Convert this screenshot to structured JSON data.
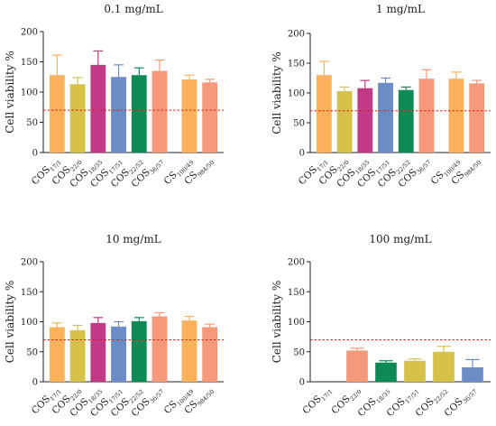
{
  "colors": {
    "orange": "#fbb15a",
    "mustard": "#d6c14b",
    "magenta": "#c23a85",
    "blue": "#6b8cc6",
    "green": "#0f8a55",
    "salmon": "#f6987a",
    "threshold": "#e0201b"
  },
  "chart_data": [
    {
      "type": "bar",
      "title": "0.1 mg/mL",
      "ylabel": "Cell viability %",
      "ylim": [
        0,
        200
      ],
      "yticks": [
        0,
        50,
        100,
        150,
        200
      ],
      "threshold": 70,
      "bars": [
        {
          "base": "COS",
          "sub": "17/1",
          "value": 128,
          "error": 33,
          "color": "orange"
        },
        {
          "base": "COS",
          "sub": "22/0",
          "value": 113,
          "error": 11,
          "color": "mustard"
        },
        {
          "base": "COS",
          "sub": "18/35",
          "value": 145,
          "error": 23,
          "color": "magenta"
        },
        {
          "base": "COS",
          "sub": "17/51",
          "value": 125,
          "error": 20,
          "color": "blue"
        },
        {
          "base": "COS",
          "sub": "22/52",
          "value": 128,
          "error": 12,
          "color": "green"
        },
        {
          "base": "COS",
          "sub": "36/57",
          "value": 135,
          "error": 18,
          "color": "salmon"
        },
        {
          "base": "CS",
          "sub": "100/49",
          "value": 121,
          "error": 7,
          "color": "orange",
          "gap": true
        },
        {
          "base": "CS",
          "sub": "984/50",
          "value": 116,
          "error": 5,
          "color": "salmon"
        }
      ]
    },
    {
      "type": "bar",
      "title": "1 mg/mL",
      "ylabel": "Cell viability %",
      "ylim": [
        0,
        200
      ],
      "yticks": [
        0,
        50,
        100,
        150,
        200
      ],
      "threshold": 70,
      "bars": [
        {
          "base": "COS",
          "sub": "17/1",
          "value": 130,
          "error": 23,
          "color": "orange"
        },
        {
          "base": "COS",
          "sub": "22/0",
          "value": 103,
          "error": 7,
          "color": "mustard"
        },
        {
          "base": "COS",
          "sub": "18/35",
          "value": 108,
          "error": 13,
          "color": "magenta"
        },
        {
          "base": "COS",
          "sub": "17/51",
          "value": 117,
          "error": 8,
          "color": "blue"
        },
        {
          "base": "COS",
          "sub": "22/52",
          "value": 105,
          "error": 5,
          "color": "green"
        },
        {
          "base": "COS",
          "sub": "36/57",
          "value": 124,
          "error": 15,
          "color": "salmon"
        },
        {
          "base": "CS",
          "sub": "100/49",
          "value": 124,
          "error": 11,
          "color": "orange",
          "gap": true
        },
        {
          "base": "CS",
          "sub": "984/50",
          "value": 116,
          "error": 5,
          "color": "salmon"
        }
      ]
    },
    {
      "type": "bar",
      "title": "10 mg/mL",
      "ylabel": "Cell viability %",
      "ylim": [
        0,
        200
      ],
      "yticks": [
        0,
        50,
        100,
        150,
        200
      ],
      "threshold": 70,
      "bars": [
        {
          "base": "COS",
          "sub": "17/1",
          "value": 91,
          "error": 7,
          "color": "orange"
        },
        {
          "base": "COS",
          "sub": "22/0",
          "value": 86,
          "error": 8,
          "color": "mustard"
        },
        {
          "base": "COS",
          "sub": "18/35",
          "value": 98,
          "error": 9,
          "color": "magenta"
        },
        {
          "base": "COS",
          "sub": "17/51",
          "value": 92,
          "error": 8,
          "color": "blue"
        },
        {
          "base": "COS",
          "sub": "22/52",
          "value": 101,
          "error": 6,
          "color": "green"
        },
        {
          "base": "COS",
          "sub": "36/57",
          "value": 109,
          "error": 6,
          "color": "salmon"
        },
        {
          "base": "CS",
          "sub": "100/49",
          "value": 102,
          "error": 7,
          "color": "orange",
          "gap": true
        },
        {
          "base": "CS",
          "sub": "984/50",
          "value": 91,
          "error": 5,
          "color": "salmon"
        }
      ]
    },
    {
      "type": "bar",
      "title": "100 mg/mL",
      "ylabel": "Cell viability %",
      "ylim": [
        0,
        200
      ],
      "yticks": [
        0,
        50,
        100,
        150,
        200
      ],
      "threshold": 70,
      "bars": [
        {
          "base": "COS",
          "sub": "17/1",
          "value": 0,
          "error": 0,
          "color": "orange"
        },
        {
          "base": "COS",
          "sub": "22/0",
          "value": 52,
          "error": 4,
          "color": "salmon"
        },
        {
          "base": "COS",
          "sub": "18/35",
          "value": 32,
          "error": 3,
          "color": "green"
        },
        {
          "base": "COS",
          "sub": "17/51",
          "value": 35,
          "error": 3,
          "color": "mustard"
        },
        {
          "base": "COS",
          "sub": "22/52",
          "value": 50,
          "error": 9,
          "color": "mustard"
        },
        {
          "base": "COS",
          "sub": "36/57",
          "value": 24,
          "error": 13,
          "color": "blue"
        }
      ]
    }
  ]
}
